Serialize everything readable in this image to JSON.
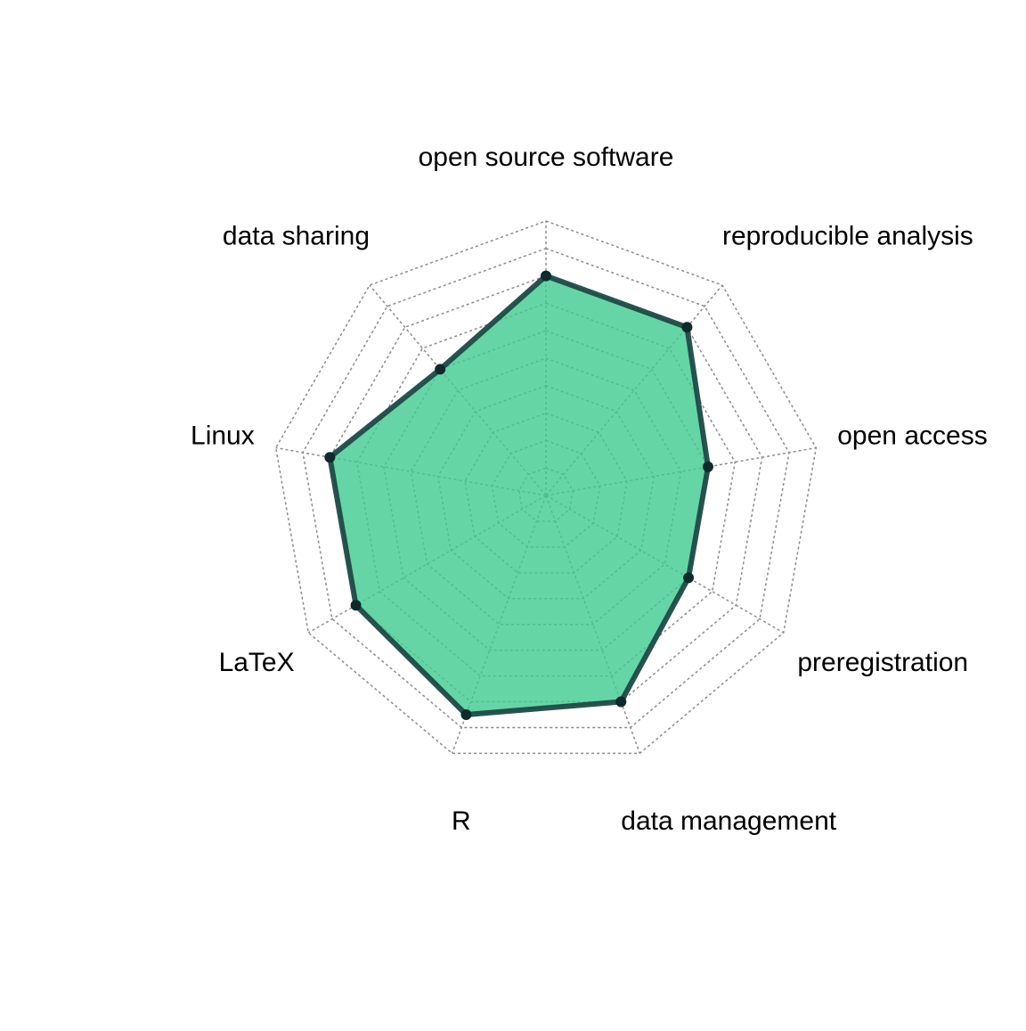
{
  "chart_data": {
    "type": "radar",
    "axes": [
      "open source software",
      "reproducible analysis",
      "open access",
      "preregistration",
      "data management",
      "R",
      "LaTeX",
      "Linux",
      "data sharing"
    ],
    "series": [
      {
        "values": [
          0.8,
          0.8,
          0.6,
          0.6,
          0.8,
          0.85,
          0.8,
          0.8,
          0.6
        ]
      }
    ],
    "rlim": [
      0,
      1
    ],
    "grid_levels": 10,
    "grid": true,
    "grid_style": "dotted",
    "fill_color": "#3ecb8f",
    "line_color": "#1d4a46",
    "grid_color": "#8c8c8c"
  }
}
